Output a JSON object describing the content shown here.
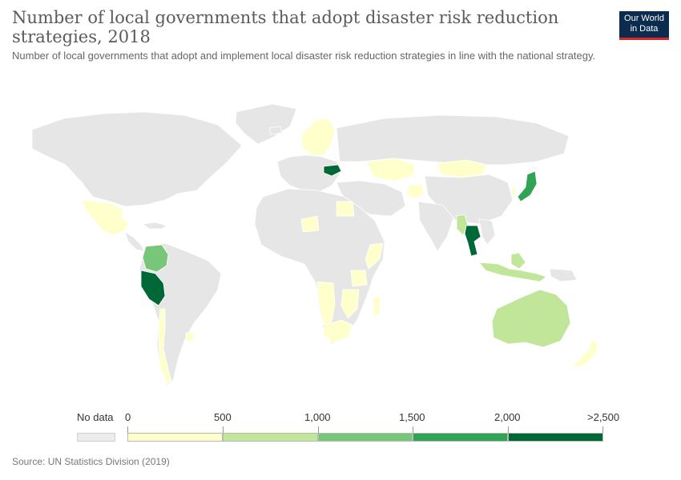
{
  "title": "Number of local governments that adopt disaster risk reduction strategies, 2018",
  "subtitle": "Number of local governments that adopt and implement local disaster risk reduction strategies in line with the national strategy.",
  "logo": {
    "line1": "Our World",
    "line2": "in Data"
  },
  "legend": {
    "no_data_label": "No data",
    "no_data_color": "#ececec",
    "tick_labels": [
      "0",
      "500",
      "1,000",
      "1,500",
      "2,000",
      ">2,500"
    ],
    "bins": [
      {
        "from": 0,
        "to": 500,
        "color": "#ffffcc"
      },
      {
        "from": 500,
        "to": 1000,
        "color": "#c2e699"
      },
      {
        "from": 1000,
        "to": 1500,
        "color": "#78c679"
      },
      {
        "from": 1500,
        "to": 2000,
        "color": "#31a354"
      },
      {
        "from": 2000,
        "to": 2500,
        "color": "#006837"
      }
    ]
  },
  "map": {
    "background_land_color": "#e6e6e6",
    "highlighted_regions": [
      {
        "region": "Peru",
        "bin": 5
      },
      {
        "region": "Thailand",
        "bin": 5
      },
      {
        "region": "Romania",
        "bin": 5
      },
      {
        "region": "Japan",
        "bin": 4
      },
      {
        "region": "Colombia",
        "bin": 3
      },
      {
        "region": "Myanmar",
        "bin": 2
      },
      {
        "region": "Indonesia",
        "bin": 2
      },
      {
        "region": "Philippines",
        "bin": 2
      },
      {
        "region": "Australia",
        "bin": 2
      },
      {
        "region": "Mexico",
        "bin": 1
      },
      {
        "region": "Chile",
        "bin": 1
      },
      {
        "region": "Uruguay",
        "bin": 1
      },
      {
        "region": "Niger",
        "bin": 1
      },
      {
        "region": "Egypt",
        "bin": 1
      },
      {
        "region": "Kazakhstan",
        "bin": 1
      },
      {
        "region": "Mongolia",
        "bin": 1
      },
      {
        "region": "Afghanistan",
        "bin": 1
      },
      {
        "region": "Norway",
        "bin": 1
      },
      {
        "region": "Sweden",
        "bin": 1
      },
      {
        "region": "Finland",
        "bin": 1
      },
      {
        "region": "Tanzania",
        "bin": 1
      },
      {
        "region": "Mozambique",
        "bin": 1
      },
      {
        "region": "Angola",
        "bin": 1
      },
      {
        "region": "Namibia",
        "bin": 1
      },
      {
        "region": "South Africa",
        "bin": 1
      },
      {
        "region": "Madagascar",
        "bin": 1
      },
      {
        "region": "Somalia",
        "bin": 1
      },
      {
        "region": "New Zealand",
        "bin": 1
      }
    ]
  },
  "source": "Source: UN Statistics Division (2019)"
}
